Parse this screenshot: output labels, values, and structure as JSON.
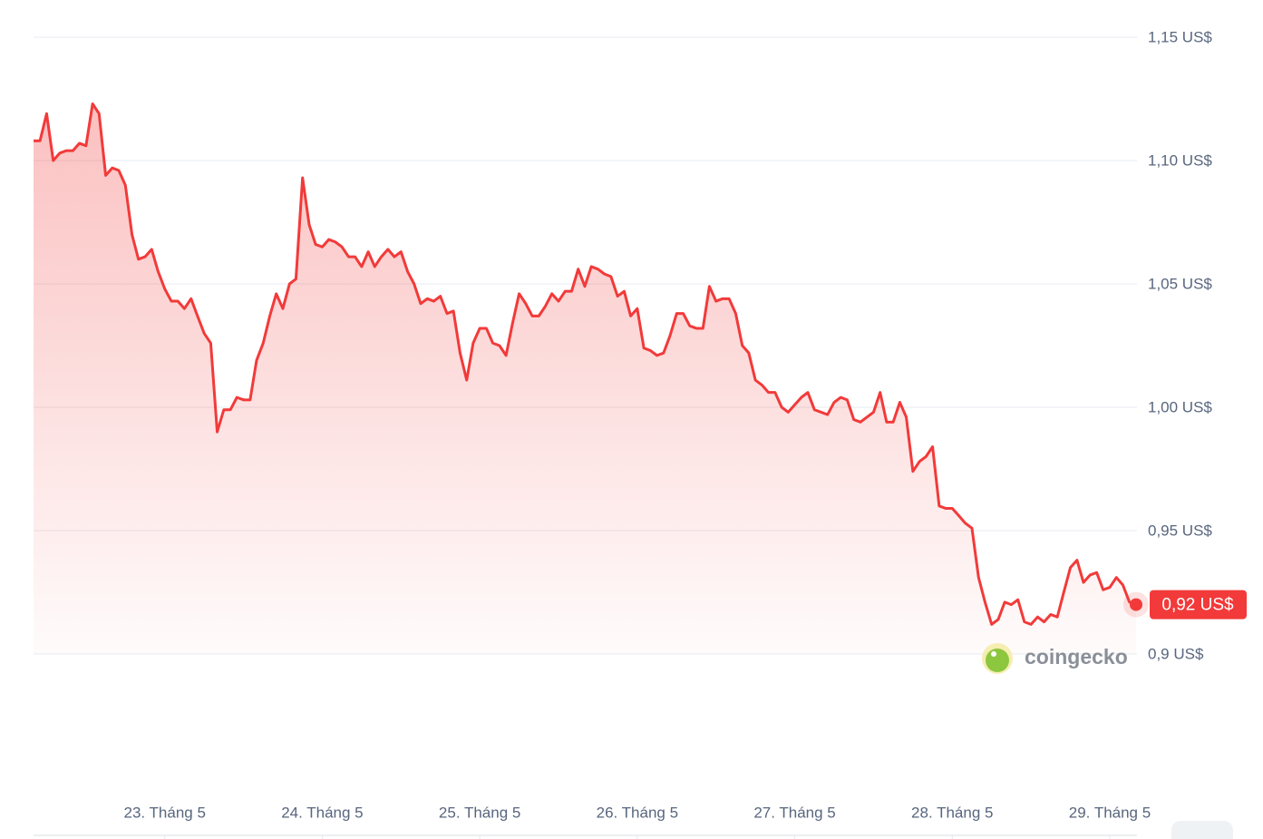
{
  "chart_data": {
    "type": "line",
    "color": "#f23a3a",
    "grid": true,
    "x": [
      22.167,
      22.208,
      22.25,
      22.292,
      22.333,
      22.375,
      22.417,
      22.458,
      22.5,
      22.542,
      22.583,
      22.625,
      22.667,
      22.708,
      22.75,
      22.792,
      22.833,
      22.875,
      22.917,
      22.958,
      23,
      23.042,
      23.083,
      23.125,
      23.167,
      23.208,
      23.25,
      23.292,
      23.333,
      23.375,
      23.417,
      23.458,
      23.5,
      23.542,
      23.583,
      23.625,
      23.667,
      23.708,
      23.75,
      23.792,
      23.833,
      23.875,
      23.917,
      23.958,
      24,
      24.042,
      24.083,
      24.125,
      24.167,
      24.208,
      24.25,
      24.292,
      24.333,
      24.375,
      24.417,
      24.458,
      24.5,
      24.542,
      24.583,
      24.625,
      24.667,
      24.708,
      24.75,
      24.792,
      24.833,
      24.875,
      24.917,
      24.958,
      25,
      25.042,
      25.083,
      25.125,
      25.167,
      25.208,
      25.25,
      25.292,
      25.333,
      25.375,
      25.417,
      25.458,
      25.5,
      25.542,
      25.583,
      25.625,
      25.667,
      25.708,
      25.75,
      25.792,
      25.833,
      25.875,
      25.917,
      25.958,
      26,
      26.042,
      26.083,
      26.125,
      26.167,
      26.208,
      26.25,
      26.292,
      26.333,
      26.375,
      26.417,
      26.458,
      26.5,
      26.542,
      26.583,
      26.625,
      26.667,
      26.708,
      26.75,
      26.792,
      26.833,
      26.875,
      26.917,
      26.958,
      27,
      27.042,
      27.083,
      27.125,
      27.167,
      27.208,
      27.25,
      27.292,
      27.333,
      27.375,
      27.417,
      27.458,
      27.5,
      27.542,
      27.583,
      27.625,
      27.667,
      27.708,
      27.75,
      27.792,
      27.833,
      27.875,
      27.917,
      27.958,
      28,
      28.042,
      28.083,
      28.125,
      28.167,
      28.208,
      28.25,
      28.292,
      28.333,
      28.375,
      28.417,
      28.458,
      28.5,
      28.542,
      28.583,
      28.625,
      28.667,
      28.708,
      28.75,
      28.792,
      28.833,
      28.875,
      28.917,
      28.958,
      29,
      29.042,
      29.083,
      29.125,
      29.167
    ],
    "values": [
      1.108,
      1.108,
      1.119,
      1.1,
      1.103,
      1.104,
      1.104,
      1.107,
      1.106,
      1.123,
      1.119,
      1.094,
      1.097,
      1.096,
      1.09,
      1.07,
      1.06,
      1.061,
      1.064,
      1.055,
      1.048,
      1.043,
      1.043,
      1.04,
      1.044,
      1.037,
      1.03,
      1.026,
      0.99,
      0.999,
      0.999,
      1.004,
      1.003,
      1.003,
      1.019,
      1.026,
      1.037,
      1.046,
      1.04,
      1.05,
      1.052,
      1.093,
      1.074,
      1.066,
      1.065,
      1.068,
      1.067,
      1.065,
      1.061,
      1.061,
      1.057,
      1.063,
      1.057,
      1.061,
      1.064,
      1.061,
      1.063,
      1.055,
      1.05,
      1.042,
      1.044,
      1.043,
      1.045,
      1.038,
      1.039,
      1.022,
      1.011,
      1.026,
      1.032,
      1.032,
      1.026,
      1.025,
      1.021,
      1.034,
      1.046,
      1.042,
      1.037,
      1.037,
      1.041,
      1.046,
      1.043,
      1.047,
      1.047,
      1.056,
      1.049,
      1.057,
      1.056,
      1.054,
      1.053,
      1.045,
      1.047,
      1.037,
      1.04,
      1.024,
      1.023,
      1.021,
      1.022,
      1.029,
      1.038,
      1.038,
      1.033,
      1.032,
      1.032,
      1.049,
      1.043,
      1.044,
      1.044,
      1.038,
      1.025,
      1.022,
      1.011,
      1.009,
      1.006,
      1.006,
      1.0,
      0.998,
      1.001,
      1.004,
      1.006,
      0.999,
      0.998,
      0.997,
      1.002,
      1.004,
      1.003,
      0.995,
      0.994,
      0.996,
      0.998,
      1.006,
      0.994,
      0.994,
      1.002,
      0.996,
      0.974,
      0.978,
      0.98,
      0.984,
      0.96,
      0.959,
      0.959,
      0.956,
      0.953,
      0.951,
      0.931,
      0.921,
      0.912,
      0.914,
      0.921,
      0.92,
      0.922,
      0.913,
      0.912,
      0.915,
      0.913,
      0.916,
      0.915,
      0.925,
      0.935,
      0.938,
      0.929,
      0.932,
      0.933,
      0.926,
      0.927,
      0.931,
      0.928,
      0.921,
      0.92
    ],
    "xlim": [
      22.167,
      29.167
    ],
    "xticks": [
      {
        "value": 23,
        "label": "23. Tháng 5"
      },
      {
        "value": 24,
        "label": "24. Tháng 5"
      },
      {
        "value": 25,
        "label": "25. Tháng 5"
      },
      {
        "value": 26,
        "label": "26. Tháng 5"
      },
      {
        "value": 27,
        "label": "27. Tháng 5"
      },
      {
        "value": 28,
        "label": "28. Tháng 5"
      },
      {
        "value": 29,
        "label": "29. Tháng 5"
      }
    ],
    "ylim": [
      0.9,
      1.15
    ],
    "yticks": [
      {
        "value": 0.9,
        "label": "0,9 US$"
      },
      {
        "value": 0.95,
        "label": "0,95 US$"
      },
      {
        "value": 1.0,
        "label": "1,00 US$"
      },
      {
        "value": 1.05,
        "label": "1,05 US$"
      },
      {
        "value": 1.1,
        "label": "1,10 US$"
      },
      {
        "value": 1.15,
        "label": "1,15 US$"
      }
    ],
    "current_label": "0,92 US$",
    "watermark": "coingecko"
  }
}
